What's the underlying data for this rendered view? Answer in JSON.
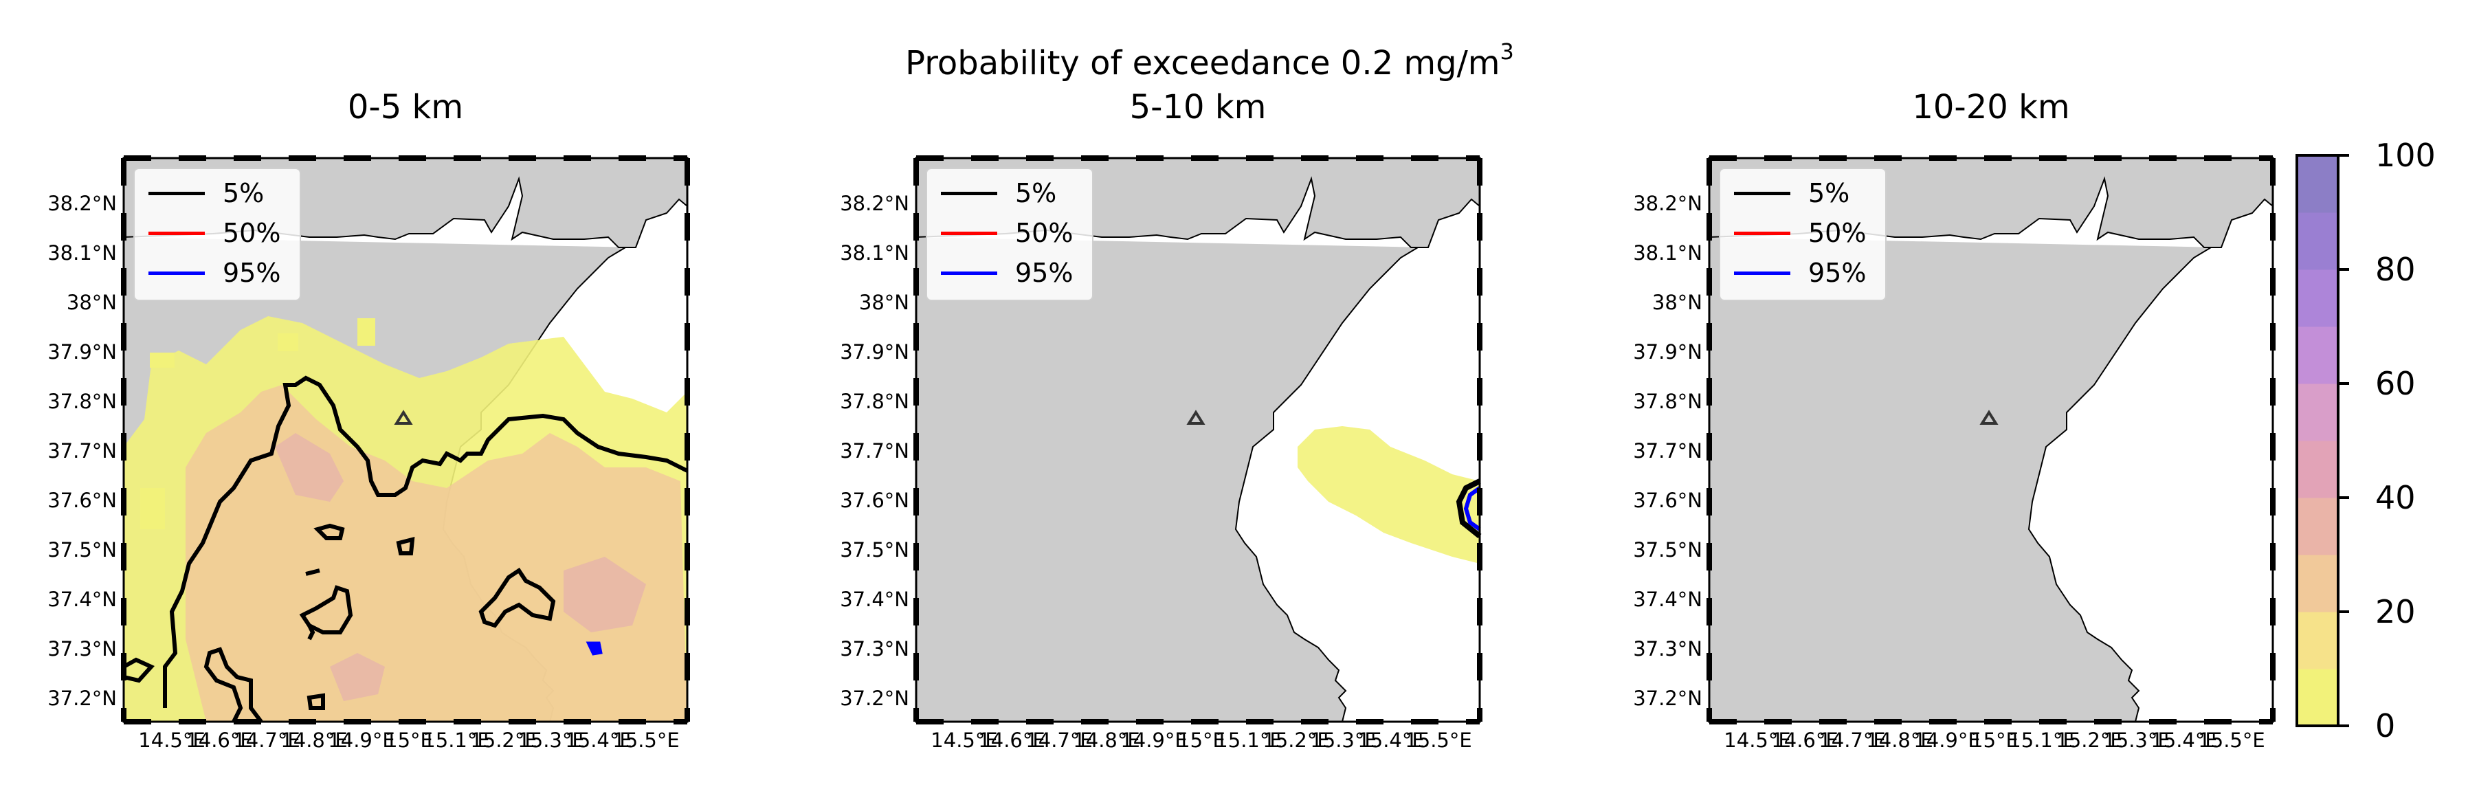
{
  "figure": {
    "suptitle_main": "Probability of exceedance 0.2 mg/m",
    "suptitle_sup": "3"
  },
  "legend": [
    {
      "label": "5%",
      "color": "#000000"
    },
    {
      "label": "50%",
      "color": "#ff0000"
    },
    {
      "label": "95%",
      "color": "#0000ff"
    }
  ],
  "panels": [
    {
      "title": "0-5 km"
    },
    {
      "title": "5-10 km"
    },
    {
      "title": "10-20 km"
    }
  ],
  "axes": {
    "lat_labels": [
      "38.2°N",
      "38.1°N",
      "38°N",
      "37.9°N",
      "37.8°N",
      "37.7°N",
      "37.6°N",
      "37.5°N",
      "37.4°N",
      "37.3°N",
      "37.2°N"
    ],
    "lon_labels": [
      "14.5°E",
      "14.6°E",
      "14.7°E",
      "14.8°E",
      "14.9°E",
      "15°E",
      "15.1°E",
      "15.2°E",
      "15.3°E",
      "15.4°E",
      "15.5°E"
    ]
  },
  "colorbar": {
    "ticks": [
      "0",
      "20",
      "40",
      "60",
      "80",
      "100"
    ],
    "colors": [
      "#f2f27a",
      "#f6e28a",
      "#f1c99a",
      "#eab4a8",
      "#e2a3b7",
      "#d99ec9",
      "#c38fd8",
      "#ad85d9",
      "#9a7fd2",
      "#8c7ec6"
    ]
  },
  "map_style": {
    "land_color": "#cccccc",
    "sea_color": "#ffffff",
    "contour_5_color": "#000000",
    "contour_95_color": "#0000ff",
    "volcano_marker": "triangle"
  }
}
